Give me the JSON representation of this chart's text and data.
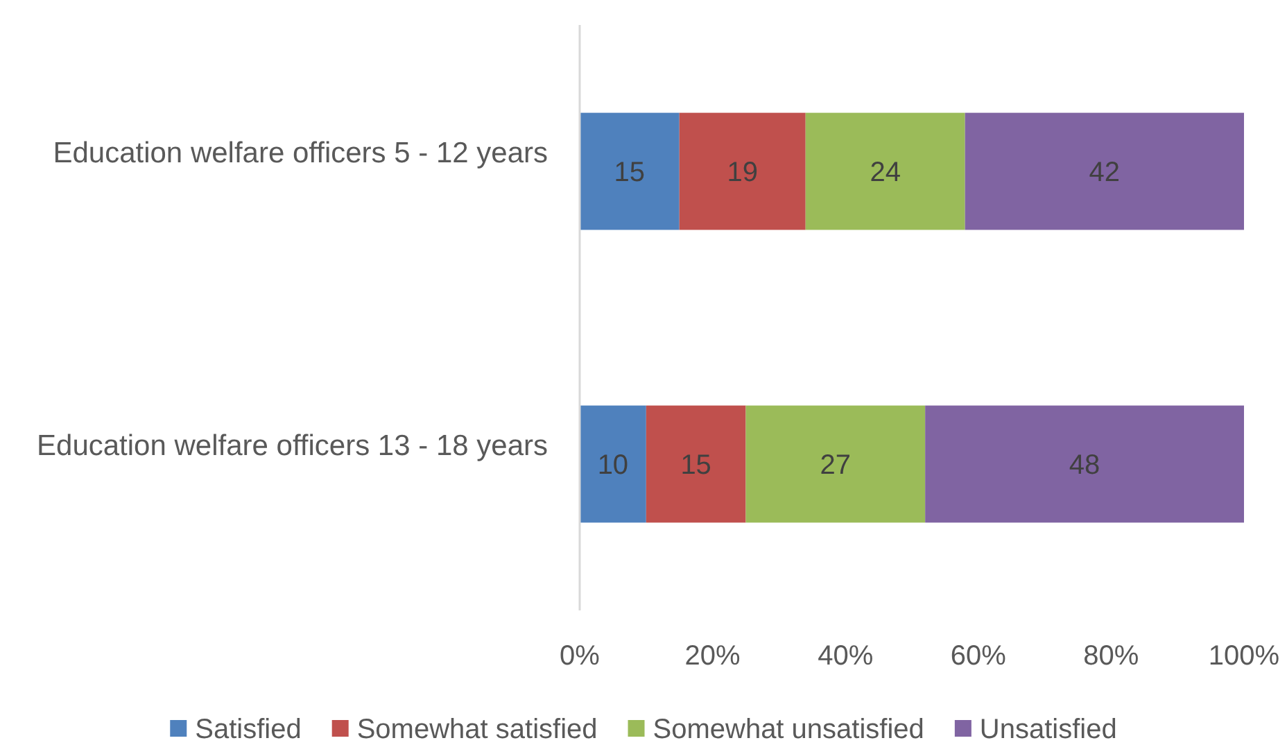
{
  "chart_data": {
    "type": "bar",
    "orientation": "horizontal",
    "stacked": true,
    "categories": [
      "Education welfare officers 5 - 12 years",
      "Education welfare officers 13 - 18 years"
    ],
    "series": [
      {
        "name": "Satisfied",
        "color": "#4f81bd",
        "values": [
          15,
          10
        ]
      },
      {
        "name": "Somewhat satisfied",
        "color": "#c0504d",
        "values": [
          19,
          15
        ]
      },
      {
        "name": "Somewhat unsatisfied",
        "color": "#9bbb59",
        "values": [
          24,
          27
        ]
      },
      {
        "name": "Unsatisfied",
        "color": "#8064a2",
        "values": [
          42,
          48
        ]
      }
    ],
    "xlim": [
      0,
      100
    ],
    "xticks": [
      {
        "value": 0,
        "label": "0%"
      },
      {
        "value": 20,
        "label": "20%"
      },
      {
        "value": 40,
        "label": "40%"
      },
      {
        "value": 60,
        "label": "60%"
      },
      {
        "value": 80,
        "label": "80%"
      },
      {
        "value": 100,
        "label": "100%"
      }
    ],
    "data_labels": true,
    "grid": false,
    "legend": "bottom"
  }
}
